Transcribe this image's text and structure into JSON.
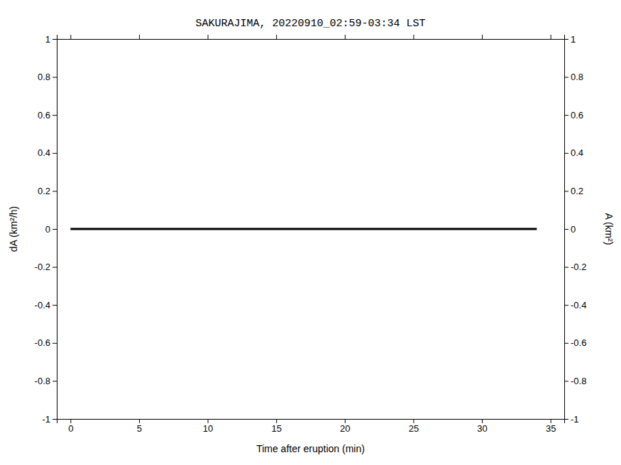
{
  "chart_data": {
    "type": "line",
    "title": "SAKURAJIMA, 20220910_02:59-03:34 LST",
    "x_label": "Time after eruption (min)",
    "y_label": "dA (km²/h)",
    "y2_label": "A (km²)",
    "x": [
      0,
      34
    ],
    "series": [
      {
        "values": [
          0,
          0
        ],
        "color": "#000000"
      }
    ],
    "xlim": [
      -1,
      36
    ],
    "ylim": [
      -1,
      1
    ],
    "y2lim": [
      -1,
      1
    ],
    "xticks": [
      0,
      5,
      10,
      15,
      20,
      25,
      30,
      35
    ],
    "yticks": [
      -1,
      -0.8,
      -0.6,
      -0.4,
      -0.2,
      0,
      0.2,
      0.4,
      0.6,
      0.8,
      1
    ],
    "y2ticks": [
      -1,
      -0.8,
      -0.6,
      -0.4,
      -0.2,
      0,
      0.2,
      0.4,
      0.6,
      0.8,
      1
    ]
  }
}
